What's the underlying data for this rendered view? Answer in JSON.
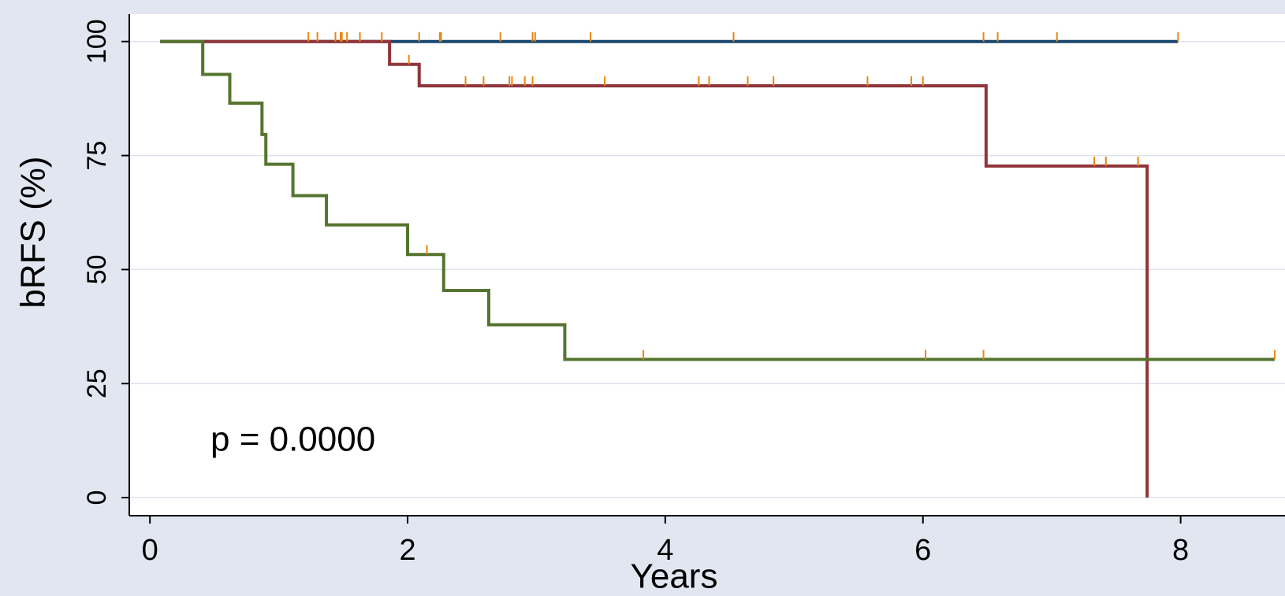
{
  "chart_data": {
    "type": "step",
    "x_label": "Years",
    "y_label": "bRFS (%)",
    "annotation": "p = 0.0000",
    "xlim": [
      -0.16,
      8.81
    ],
    "xticks": [
      0,
      2,
      4,
      6,
      8
    ],
    "ylim": [
      -3.97,
      106
    ],
    "yticks": [
      0,
      25,
      50,
      75,
      100
    ],
    "grid": true,
    "censor_color": "#e8870f",
    "series": [
      {
        "color": "#1a476f",
        "x": [
          0.08,
          7.98
        ],
        "values": [
          100,
          100
        ],
        "censor_x": [
          1.23,
          1.3,
          1.44,
          1.48,
          1.49,
          1.53,
          1.63,
          1.8,
          2.09,
          2.25,
          2.26,
          2.72,
          2.97,
          2.99,
          3.42,
          4.53,
          6.47,
          6.58,
          7.04,
          7.98
        ],
        "censor_values": [
          100,
          100,
          100,
          100,
          100,
          100,
          100,
          100,
          100,
          100,
          100,
          100,
          100,
          100,
          100,
          100,
          100,
          100,
          100,
          100
        ]
      },
      {
        "color": "#90353b",
        "x": [
          0.08,
          1.86,
          2.09,
          6.49,
          7.74
        ],
        "values": [
          100,
          95,
          90.3,
          72.7,
          0
        ],
        "censor_x": [
          2.01,
          2.45,
          2.59,
          2.79,
          2.81,
          2.91,
          2.97,
          3.53,
          4.26,
          4.34,
          4.64,
          4.84,
          5.57,
          5.91,
          6.0,
          7.33,
          7.42,
          7.67
        ],
        "censor_values": [
          95,
          90.3,
          90.3,
          90.3,
          90.3,
          90.3,
          90.3,
          90.3,
          90.3,
          90.3,
          90.3,
          90.3,
          90.3,
          90.3,
          90.3,
          72.7,
          72.7,
          72.7
        ]
      },
      {
        "color": "#55752f",
        "x": [
          0.08,
          0.41,
          0.62,
          0.87,
          0.9,
          1.11,
          1.37,
          2.0,
          2.28,
          2.63,
          3.22,
          8.73
        ],
        "values": [
          100,
          92.8,
          86.5,
          79.6,
          73.1,
          66.2,
          59.8,
          53.3,
          45.4,
          37.9,
          30.3,
          30.3
        ],
        "censor_x": [
          2.15,
          3.83,
          6.02,
          6.47,
          8.73
        ],
        "censor_values": [
          53.3,
          30.3,
          30.3,
          30.3,
          30.3
        ]
      }
    ]
  }
}
